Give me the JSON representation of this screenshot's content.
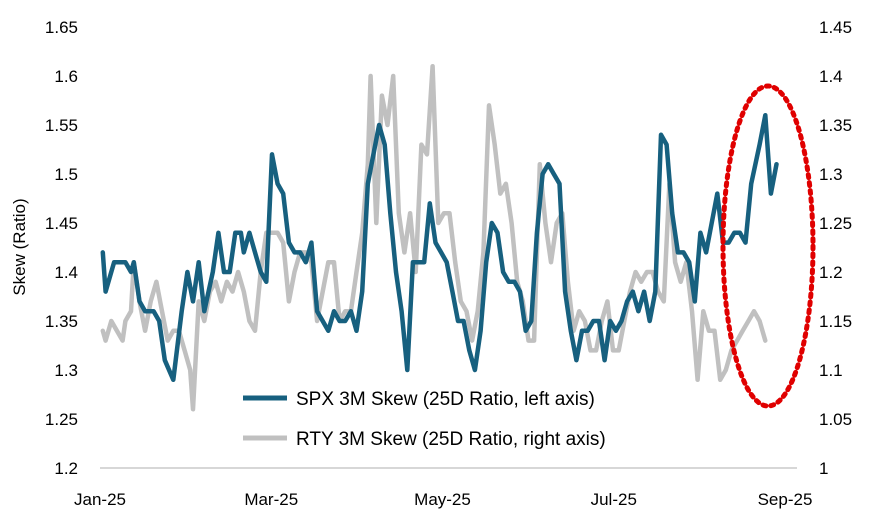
{
  "chart_data": {
    "type": "line",
    "title": "",
    "ylabel_left": "Skew (Ratio)",
    "ylabel_right": "",
    "x_ticks": [
      "Jan-25",
      "Mar-25",
      "May-25",
      "Jul-25",
      "Sep-25"
    ],
    "y_left_ticks": [
      "1.2",
      "1.25",
      "1.3",
      "1.35",
      "1.4",
      "1.45",
      "1.5",
      "1.55",
      "1.6",
      "1.65"
    ],
    "y_right_ticks": [
      "1",
      "1.05",
      "1.1",
      "1.15",
      "1.2",
      "1.25",
      "1.3",
      "1.35",
      "1.4",
      "1.45"
    ],
    "y_left_range": [
      1.2,
      1.65
    ],
    "y_right_range": [
      1.0,
      1.45
    ],
    "x_range": [
      "2025-01-01",
      "2025-09-01"
    ],
    "grid": false,
    "legend_position": "bottom-center",
    "annotation": "red dotted ellipse around late Aug to early Sep 2025",
    "series": [
      {
        "name": "SPX 3M Skew (25D Ratio, left axis)",
        "axis": "left",
        "color": "#17607f",
        "points": [
          [
            "2025-01-02",
            1.42
          ],
          [
            "2025-01-03",
            1.38
          ],
          [
            "2025-01-06",
            1.41
          ],
          [
            "2025-01-08",
            1.41
          ],
          [
            "2025-01-10",
            1.41
          ],
          [
            "2025-01-12",
            1.4
          ],
          [
            "2025-01-13",
            1.41
          ],
          [
            "2025-01-15",
            1.37
          ],
          [
            "2025-01-17",
            1.36
          ],
          [
            "2025-01-20",
            1.36
          ],
          [
            "2025-01-22",
            1.35
          ],
          [
            "2025-01-24",
            1.31
          ],
          [
            "2025-01-27",
            1.29
          ],
          [
            "2025-01-30",
            1.36
          ],
          [
            "2025-02-01",
            1.4
          ],
          [
            "2025-02-03",
            1.37
          ],
          [
            "2025-02-05",
            1.41
          ],
          [
            "2025-02-07",
            1.36
          ],
          [
            "2025-02-10",
            1.4
          ],
          [
            "2025-02-12",
            1.44
          ],
          [
            "2025-02-14",
            1.4
          ],
          [
            "2025-02-16",
            1.4
          ],
          [
            "2025-02-18",
            1.44
          ],
          [
            "2025-02-20",
            1.44
          ],
          [
            "2025-02-21",
            1.42
          ],
          [
            "2025-02-23",
            1.44
          ],
          [
            "2025-02-25",
            1.42
          ],
          [
            "2025-02-27",
            1.4
          ],
          [
            "2025-03-01",
            1.39
          ],
          [
            "2025-03-03",
            1.52
          ],
          [
            "2025-03-05",
            1.49
          ],
          [
            "2025-03-07",
            1.48
          ],
          [
            "2025-03-09",
            1.43
          ],
          [
            "2025-03-11",
            1.42
          ],
          [
            "2025-03-13",
            1.42
          ],
          [
            "2025-03-15",
            1.41
          ],
          [
            "2025-03-17",
            1.43
          ],
          [
            "2025-03-19",
            1.36
          ],
          [
            "2025-03-21",
            1.35
          ],
          [
            "2025-03-23",
            1.34
          ],
          [
            "2025-03-25",
            1.36
          ],
          [
            "2025-03-27",
            1.35
          ],
          [
            "2025-03-29",
            1.35
          ],
          [
            "2025-03-31",
            1.36
          ],
          [
            "2025-04-02",
            1.34
          ],
          [
            "2025-04-04",
            1.38
          ],
          [
            "2025-04-06",
            1.49
          ],
          [
            "2025-04-08",
            1.52
          ],
          [
            "2025-04-10",
            1.55
          ],
          [
            "2025-04-12",
            1.53
          ],
          [
            "2025-04-14",
            1.46
          ],
          [
            "2025-04-16",
            1.4
          ],
          [
            "2025-04-18",
            1.36
          ],
          [
            "2025-04-20",
            1.3
          ],
          [
            "2025-04-22",
            1.41
          ],
          [
            "2025-04-24",
            1.41
          ],
          [
            "2025-04-26",
            1.41
          ],
          [
            "2025-04-28",
            1.47
          ],
          [
            "2025-04-30",
            1.43
          ],
          [
            "2025-05-02",
            1.42
          ],
          [
            "2025-05-04",
            1.41
          ],
          [
            "2025-05-06",
            1.38
          ],
          [
            "2025-05-08",
            1.35
          ],
          [
            "2025-05-10",
            1.35
          ],
          [
            "2025-05-12",
            1.32
          ],
          [
            "2025-05-14",
            1.3
          ],
          [
            "2025-05-16",
            1.34
          ],
          [
            "2025-05-18",
            1.41
          ],
          [
            "2025-05-20",
            1.45
          ],
          [
            "2025-05-22",
            1.44
          ],
          [
            "2025-05-24",
            1.4
          ],
          [
            "2025-05-26",
            1.39
          ],
          [
            "2025-05-28",
            1.39
          ],
          [
            "2025-05-30",
            1.38
          ],
          [
            "2025-06-01",
            1.34
          ],
          [
            "2025-06-03",
            1.35
          ],
          [
            "2025-06-05",
            1.44
          ],
          [
            "2025-06-07",
            1.5
          ],
          [
            "2025-06-09",
            1.51
          ],
          [
            "2025-06-11",
            1.5
          ],
          [
            "2025-06-13",
            1.49
          ],
          [
            "2025-06-15",
            1.38
          ],
          [
            "2025-06-17",
            1.34
          ],
          [
            "2025-06-19",
            1.31
          ],
          [
            "2025-06-21",
            1.34
          ],
          [
            "2025-06-23",
            1.34
          ],
          [
            "2025-06-25",
            1.35
          ],
          [
            "2025-06-27",
            1.35
          ],
          [
            "2025-06-29",
            1.31
          ],
          [
            "2025-07-01",
            1.35
          ],
          [
            "2025-07-03",
            1.34
          ],
          [
            "2025-07-05",
            1.35
          ],
          [
            "2025-07-07",
            1.37
          ],
          [
            "2025-07-09",
            1.38
          ],
          [
            "2025-07-11",
            1.36
          ],
          [
            "2025-07-13",
            1.38
          ],
          [
            "2025-07-15",
            1.35
          ],
          [
            "2025-07-17",
            1.38
          ],
          [
            "2025-07-19",
            1.54
          ],
          [
            "2025-07-21",
            1.53
          ],
          [
            "2025-07-23",
            1.46
          ],
          [
            "2025-07-25",
            1.42
          ],
          [
            "2025-07-27",
            1.42
          ],
          [
            "2025-07-29",
            1.41
          ],
          [
            "2025-07-31",
            1.37
          ],
          [
            "2025-08-02",
            1.44
          ],
          [
            "2025-08-04",
            1.42
          ],
          [
            "2025-08-06",
            1.45
          ],
          [
            "2025-08-08",
            1.48
          ],
          [
            "2025-08-10",
            1.43
          ],
          [
            "2025-08-12",
            1.43
          ],
          [
            "2025-08-14",
            1.44
          ],
          [
            "2025-08-16",
            1.44
          ],
          [
            "2025-08-18",
            1.43
          ],
          [
            "2025-08-20",
            1.49
          ],
          [
            "2025-08-23",
            1.53
          ],
          [
            "2025-08-25",
            1.56
          ],
          [
            "2025-08-27",
            1.48
          ],
          [
            "2025-08-29",
            1.51
          ]
        ]
      },
      {
        "name": "RTY 3M Skew (25D Ratio, right axis)",
        "axis": "right",
        "color": "#c0c0c0",
        "points": [
          [
            "2025-01-02",
            1.14
          ],
          [
            "2025-01-03",
            1.13
          ],
          [
            "2025-01-05",
            1.15
          ],
          [
            "2025-01-07",
            1.14
          ],
          [
            "2025-01-09",
            1.13
          ],
          [
            "2025-01-10",
            1.15
          ],
          [
            "2025-01-12",
            1.16
          ],
          [
            "2025-01-13",
            1.21
          ],
          [
            "2025-01-15",
            1.17
          ],
          [
            "2025-01-17",
            1.14
          ],
          [
            "2025-01-19",
            1.17
          ],
          [
            "2025-01-21",
            1.19
          ],
          [
            "2025-01-23",
            1.16
          ],
          [
            "2025-01-25",
            1.13
          ],
          [
            "2025-01-27",
            1.14
          ],
          [
            "2025-01-29",
            1.14
          ],
          [
            "2025-01-31",
            1.12
          ],
          [
            "2025-02-02",
            1.1
          ],
          [
            "2025-02-03",
            1.06
          ],
          [
            "2025-02-05",
            1.17
          ],
          [
            "2025-02-07",
            1.15
          ],
          [
            "2025-02-09",
            1.18
          ],
          [
            "2025-02-11",
            1.19
          ],
          [
            "2025-02-13",
            1.17
          ],
          [
            "2025-02-15",
            1.19
          ],
          [
            "2025-02-17",
            1.18
          ],
          [
            "2025-02-19",
            1.2
          ],
          [
            "2025-02-21",
            1.18
          ],
          [
            "2025-02-23",
            1.15
          ],
          [
            "2025-02-25",
            1.14
          ],
          [
            "2025-02-27",
            1.2
          ],
          [
            "2025-03-01",
            1.24
          ],
          [
            "2025-03-03",
            1.24
          ],
          [
            "2025-03-05",
            1.24
          ],
          [
            "2025-03-07",
            1.23
          ],
          [
            "2025-03-09",
            1.17
          ],
          [
            "2025-03-11",
            1.2
          ],
          [
            "2025-03-13",
            1.22
          ],
          [
            "2025-03-15",
            1.22
          ],
          [
            "2025-03-17",
            1.21
          ],
          [
            "2025-03-19",
            1.15
          ],
          [
            "2025-03-21",
            1.18
          ],
          [
            "2025-03-23",
            1.21
          ],
          [
            "2025-03-25",
            1.21
          ],
          [
            "2025-03-27",
            1.15
          ],
          [
            "2025-03-29",
            1.16
          ],
          [
            "2025-03-31",
            1.16
          ],
          [
            "2025-04-02",
            1.2
          ],
          [
            "2025-04-04",
            1.24
          ],
          [
            "2025-04-06",
            1.31
          ],
          [
            "2025-04-07",
            1.4
          ],
          [
            "2025-04-09",
            1.25
          ],
          [
            "2025-04-11",
            1.38
          ],
          [
            "2025-04-13",
            1.35
          ],
          [
            "2025-04-15",
            1.4
          ],
          [
            "2025-04-17",
            1.26
          ],
          [
            "2025-04-19",
            1.22
          ],
          [
            "2025-04-21",
            1.26
          ],
          [
            "2025-04-23",
            1.2
          ],
          [
            "2025-04-25",
            1.33
          ],
          [
            "2025-04-27",
            1.32
          ],
          [
            "2025-04-29",
            1.41
          ],
          [
            "2025-05-01",
            1.25
          ],
          [
            "2025-05-03",
            1.26
          ],
          [
            "2025-05-05",
            1.26
          ],
          [
            "2025-05-07",
            1.21
          ],
          [
            "2025-05-09",
            1.17
          ],
          [
            "2025-05-11",
            1.16
          ],
          [
            "2025-05-13",
            1.13
          ],
          [
            "2025-05-15",
            1.16
          ],
          [
            "2025-05-17",
            1.22
          ],
          [
            "2025-05-19",
            1.37
          ],
          [
            "2025-05-21",
            1.33
          ],
          [
            "2025-05-23",
            1.28
          ],
          [
            "2025-05-25",
            1.29
          ],
          [
            "2025-05-27",
            1.25
          ],
          [
            "2025-05-29",
            1.19
          ],
          [
            "2025-05-31",
            1.17
          ],
          [
            "2025-06-02",
            1.13
          ],
          [
            "2025-06-04",
            1.13
          ],
          [
            "2025-06-06",
            1.31
          ],
          [
            "2025-06-08",
            1.25
          ],
          [
            "2025-06-10",
            1.21
          ],
          [
            "2025-06-12",
            1.25
          ],
          [
            "2025-06-14",
            1.26
          ],
          [
            "2025-06-16",
            1.19
          ],
          [
            "2025-06-18",
            1.14
          ],
          [
            "2025-06-20",
            1.16
          ],
          [
            "2025-06-22",
            1.15
          ],
          [
            "2025-06-24",
            1.12
          ],
          [
            "2025-06-26",
            1.12
          ],
          [
            "2025-06-28",
            1.15
          ],
          [
            "2025-06-30",
            1.17
          ],
          [
            "2025-07-02",
            1.12
          ],
          [
            "2025-07-04",
            1.12
          ],
          [
            "2025-07-06",
            1.15
          ],
          [
            "2025-07-08",
            1.18
          ],
          [
            "2025-07-10",
            1.2
          ],
          [
            "2025-07-12",
            1.19
          ],
          [
            "2025-07-14",
            1.2
          ],
          [
            "2025-07-16",
            1.2
          ],
          [
            "2025-07-18",
            1.18
          ],
          [
            "2025-07-20",
            1.17
          ],
          [
            "2025-07-22",
            1.29
          ],
          [
            "2025-07-24",
            1.21
          ],
          [
            "2025-07-26",
            1.19
          ],
          [
            "2025-07-28",
            1.21
          ],
          [
            "2025-07-30",
            1.16
          ],
          [
            "2025-08-01",
            1.09
          ],
          [
            "2025-08-03",
            1.16
          ],
          [
            "2025-08-05",
            1.14
          ],
          [
            "2025-08-07",
            1.14
          ],
          [
            "2025-08-09",
            1.09
          ],
          [
            "2025-08-11",
            1.1
          ],
          [
            "2025-08-13",
            1.12
          ],
          [
            "2025-08-15",
            1.13
          ],
          [
            "2025-08-17",
            1.14
          ],
          [
            "2025-08-19",
            1.15
          ],
          [
            "2025-08-21",
            1.16
          ],
          [
            "2025-08-23",
            1.15
          ],
          [
            "2025-08-25",
            1.13
          ]
        ]
      }
    ]
  }
}
